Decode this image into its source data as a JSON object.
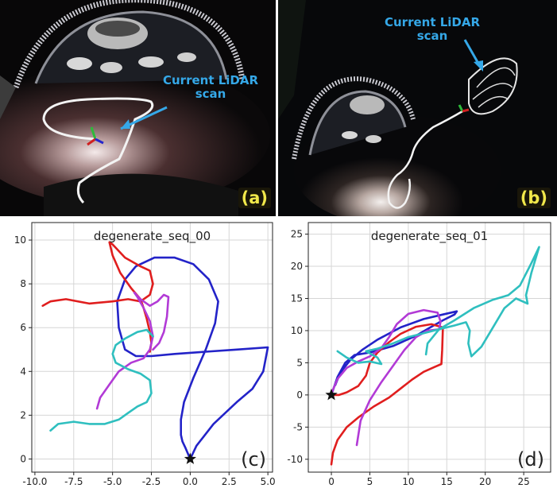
{
  "photos": {
    "a": {
      "label": "(a)",
      "scan_label_line1": "Current LiDAR",
      "scan_label_line2": "scan"
    },
    "b": {
      "label": "(b)",
      "scan_label_line1": "Current LiDAR",
      "scan_label_line2": "scan"
    }
  },
  "colors": {
    "blue": "#2323c8",
    "red": "#e01e1e",
    "magenta": "#b23ad6",
    "cyan": "#2fbfbf",
    "annotation": "#35a8e8",
    "panel_tag": "#f1e84a"
  },
  "chart_data": [
    {
      "type": "line",
      "title": "degenerate_seq_00",
      "panel_label": "(c)",
      "xlabel": "",
      "ylabel": "",
      "xlim": [
        -10.2,
        5.3
      ],
      "ylim": [
        -0.6,
        10.8
      ],
      "xticks": [
        "-10.0",
        "-7.5",
        "-5.0",
        "-2.5",
        "0.0",
        "2.5",
        "5.0"
      ],
      "xtick_values": [
        -10,
        -7.5,
        -5,
        -2.5,
        0,
        2.5,
        5
      ],
      "yticks": [
        "0",
        "2",
        "4",
        "6",
        "8",
        "10"
      ],
      "ytick_values": [
        0,
        2,
        4,
        6,
        8,
        10
      ],
      "grid": true,
      "start_marker": {
        "x": 0.0,
        "y": 0.0,
        "symbol": "star"
      },
      "series": [
        {
          "color": "#2323c8",
          "points": [
            [
              -0.5,
              0.8
            ],
            [
              -0.3,
              0.5
            ],
            [
              0.0,
              0.0
            ],
            [
              0.4,
              0.6
            ],
            [
              1.5,
              1.6
            ],
            [
              3.0,
              2.6
            ],
            [
              4.0,
              3.2
            ],
            [
              4.7,
              4.0
            ],
            [
              5.0,
              5.1
            ],
            [
              3.0,
              5.0
            ],
            [
              1.0,
              4.9
            ],
            [
              -1.0,
              4.8
            ],
            [
              -2.5,
              4.7
            ],
            [
              -3.5,
              4.7
            ],
            [
              -4.2,
              5.0
            ],
            [
              -4.6,
              6.0
            ],
            [
              -4.7,
              7.2
            ],
            [
              -4.2,
              8.2
            ],
            [
              -3.5,
              8.8
            ],
            [
              -2.3,
              9.2
            ],
            [
              -1.0,
              9.2
            ],
            [
              0.2,
              8.9
            ],
            [
              1.2,
              8.2
            ],
            [
              1.8,
              7.2
            ],
            [
              1.6,
              6.2
            ],
            [
              1.0,
              5.0
            ],
            [
              0.2,
              3.7
            ],
            [
              -0.4,
              2.6
            ],
            [
              -0.6,
              1.8
            ],
            [
              -0.6,
              1.1
            ],
            [
              -0.5,
              0.8
            ]
          ]
        },
        {
          "color": "#e01e1e",
          "points": [
            [
              -9.5,
              7.0
            ],
            [
              -9.0,
              7.2
            ],
            [
              -8.0,
              7.3
            ],
            [
              -6.5,
              7.1
            ],
            [
              -5.0,
              7.2
            ],
            [
              -4.0,
              7.3
            ],
            [
              -3.2,
              7.2
            ],
            [
              -2.6,
              7.5
            ],
            [
              -2.4,
              8.0
            ],
            [
              -2.6,
              8.6
            ],
            [
              -3.2,
              8.8
            ],
            [
              -4.2,
              9.2
            ],
            [
              -5.0,
              9.8
            ],
            [
              -5.2,
              9.9
            ],
            [
              -5.0,
              9.3
            ],
            [
              -4.5,
              8.5
            ],
            [
              -3.8,
              7.8
            ],
            [
              -3.2,
              7.3
            ],
            [
              -3.0,
              6.9
            ],
            [
              -2.8,
              6.4
            ],
            [
              -2.6,
              5.8
            ],
            [
              -2.5,
              5.3
            ],
            [
              -2.6,
              4.9
            ]
          ]
        },
        {
          "color": "#b23ad6",
          "points": [
            [
              -6.0,
              2.3
            ],
            [
              -5.8,
              2.8
            ],
            [
              -5.2,
              3.4
            ],
            [
              -4.6,
              4.0
            ],
            [
              -3.8,
              4.4
            ],
            [
              -3.0,
              4.6
            ],
            [
              -2.6,
              5.0
            ],
            [
              -2.4,
              5.6
            ],
            [
              -2.6,
              6.3
            ],
            [
              -3.0,
              6.9
            ],
            [
              -3.4,
              7.4
            ],
            [
              -3.6,
              7.6
            ],
            [
              -3.2,
              7.3
            ],
            [
              -2.6,
              7.0
            ],
            [
              -2.1,
              7.2
            ],
            [
              -1.7,
              7.5
            ],
            [
              -1.4,
              7.4
            ],
            [
              -1.5,
              6.5
            ],
            [
              -1.7,
              5.8
            ],
            [
              -2.0,
              5.3
            ],
            [
              -2.4,
              5.0
            ]
          ]
        },
        {
          "color": "#2fbfbf",
          "points": [
            [
              -9.0,
              1.3
            ],
            [
              -8.5,
              1.6
            ],
            [
              -7.5,
              1.7
            ],
            [
              -6.5,
              1.6
            ],
            [
              -5.5,
              1.6
            ],
            [
              -4.6,
              1.8
            ],
            [
              -4.0,
              2.1
            ],
            [
              -3.4,
              2.4
            ],
            [
              -2.8,
              2.6
            ],
            [
              -2.5,
              3.0
            ],
            [
              -2.6,
              3.6
            ],
            [
              -3.2,
              3.9
            ],
            [
              -4.0,
              4.1
            ],
            [
              -4.8,
              4.4
            ],
            [
              -5.0,
              4.8
            ],
            [
              -4.8,
              5.2
            ],
            [
              -4.2,
              5.5
            ],
            [
              -3.4,
              5.8
            ],
            [
              -2.8,
              5.9
            ],
            [
              -2.4,
              5.6
            ]
          ]
        }
      ]
    },
    {
      "type": "line",
      "title": "degenerate_seq_01",
      "panel_label": "(d)",
      "xlabel": "",
      "ylabel": "",
      "xlim": [
        -3.0,
        28.5
      ],
      "ylim": [
        -12.0,
        26.8
      ],
      "xticks": [
        "0",
        "5",
        "10",
        "15",
        "20",
        "25"
      ],
      "xtick_values": [
        0,
        5,
        10,
        15,
        20,
        25
      ],
      "yticks": [
        "-10",
        "-5",
        "0",
        "5",
        "10",
        "15",
        "20",
        "25"
      ],
      "ytick_values": [
        -10,
        -5,
        0,
        5,
        10,
        15,
        20,
        25
      ],
      "grid": true,
      "start_marker": {
        "x": 0.0,
        "y": 0.0,
        "symbol": "star"
      },
      "series": [
        {
          "color": "#2323c8",
          "points": [
            [
              0.0,
              0.0
            ],
            [
              0.8,
              2.8
            ],
            [
              1.8,
              5.0
            ],
            [
              3.0,
              6.2
            ],
            [
              5.0,
              6.6
            ],
            [
              8.0,
              7.6
            ],
            [
              11.0,
              9.2
            ],
            [
              13.0,
              10.6
            ],
            [
              14.5,
              11.6
            ],
            [
              16.0,
              12.5
            ],
            [
              16.3,
              13.0
            ],
            [
              14.5,
              12.5
            ],
            [
              12.0,
              11.8
            ],
            [
              9.0,
              10.5
            ],
            [
              6.0,
              8.6
            ],
            [
              4.0,
              7.0
            ],
            [
              2.5,
              5.5
            ],
            [
              1.5,
              4.0
            ],
            [
              1.0,
              3.0
            ],
            [
              0.5,
              1.5
            ]
          ]
        },
        {
          "color": "#e01e1e",
          "points": [
            [
              0.0,
              -10.8
            ],
            [
              0.2,
              -9.0
            ],
            [
              0.8,
              -7.0
            ],
            [
              2.0,
              -5.0
            ],
            [
              3.5,
              -3.5
            ],
            [
              5.5,
              -1.8
            ],
            [
              7.5,
              -0.4
            ],
            [
              9.0,
              1.0
            ],
            [
              10.5,
              2.4
            ],
            [
              12.0,
              3.6
            ],
            [
              13.5,
              4.4
            ],
            [
              14.3,
              4.8
            ],
            [
              14.4,
              7.0
            ],
            [
              14.5,
              10.5
            ],
            [
              13.0,
              11.0
            ],
            [
              11.0,
              10.6
            ],
            [
              9.0,
              9.5
            ],
            [
              7.5,
              8.2
            ],
            [
              6.0,
              6.6
            ],
            [
              5.0,
              5.0
            ],
            [
              4.5,
              3.0
            ],
            [
              3.5,
              1.4
            ],
            [
              2.0,
              0.4
            ],
            [
              1.0,
              0.0
            ],
            [
              0.0,
              0.0
            ]
          ]
        },
        {
          "color": "#b23ad6",
          "points": [
            [
              3.3,
              -7.8
            ],
            [
              3.8,
              -4.0
            ],
            [
              5.0,
              -0.8
            ],
            [
              6.5,
              2.0
            ],
            [
              8.0,
              4.5
            ],
            [
              9.5,
              7.0
            ],
            [
              11.0,
              9.0
            ],
            [
              12.5,
              10.0
            ],
            [
              14.0,
              10.2
            ],
            [
              14.2,
              11.4
            ],
            [
              13.8,
              12.8
            ],
            [
              12.0,
              13.2
            ],
            [
              10.0,
              12.6
            ],
            [
              8.5,
              11.0
            ],
            [
              7.5,
              9.0
            ],
            [
              6.5,
              7.3
            ],
            [
              5.0,
              6.0
            ],
            [
              3.5,
              5.2
            ],
            [
              2.0,
              4.2
            ],
            [
              0.8,
              2.5
            ],
            [
              0.2,
              0.8
            ],
            [
              0.0,
              0.0
            ]
          ]
        },
        {
          "color": "#2fbfbf",
          "points": [
            [
              0.8,
              6.8
            ],
            [
              2.0,
              5.8
            ],
            [
              3.5,
              5.0
            ],
            [
              5.0,
              5.2
            ],
            [
              6.5,
              4.8
            ],
            [
              6.0,
              5.8
            ],
            [
              4.5,
              6.8
            ],
            [
              6.0,
              7.2
            ],
            [
              8.0,
              8.0
            ],
            [
              10.0,
              9.0
            ],
            [
              12.0,
              9.6
            ],
            [
              14.0,
              10.2
            ],
            [
              16.0,
              10.8
            ],
            [
              17.5,
              11.3
            ],
            [
              18.0,
              10.0
            ],
            [
              17.8,
              8.0
            ],
            [
              18.2,
              6.0
            ],
            [
              19.5,
              7.5
            ],
            [
              21.0,
              10.5
            ],
            [
              22.5,
              13.5
            ],
            [
              24.0,
              15.0
            ],
            [
              25.5,
              14.2
            ],
            [
              25.3,
              15.5
            ],
            [
              26.0,
              19.0
            ],
            [
              27.0,
              23.0
            ],
            [
              26.0,
              20.5
            ],
            [
              24.5,
              17.0
            ],
            [
              23.0,
              15.5
            ],
            [
              21.0,
              14.8
            ],
            [
              18.5,
              13.5
            ],
            [
              16.0,
              11.6
            ],
            [
              14.0,
              10.2
            ],
            [
              12.5,
              8.0
            ],
            [
              12.3,
              6.3
            ]
          ]
        }
      ]
    }
  ]
}
